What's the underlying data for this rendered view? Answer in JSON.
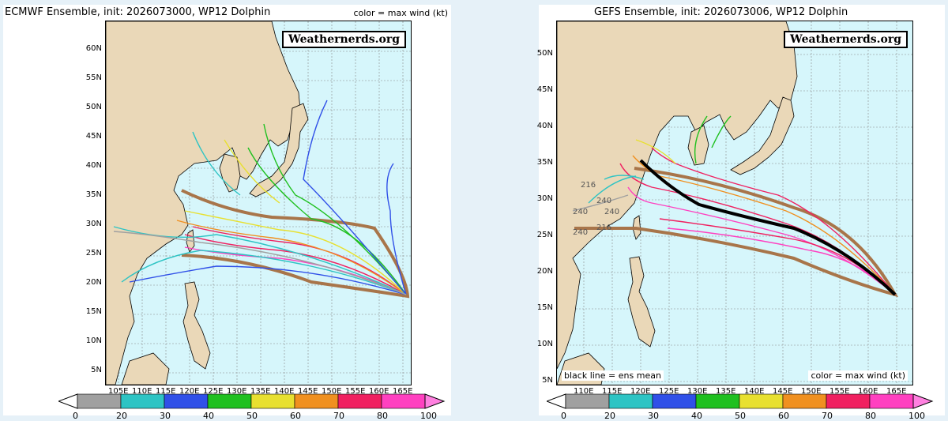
{
  "left_panel": {
    "title": "ECMWF Ensemble, init: 2026073000, WP12 Dolphin",
    "subtitle": "color = max wind (kt)",
    "brand": "Weathernerds.org",
    "lat_labels": [
      "60N",
      "55N",
      "50N",
      "45N",
      "40N",
      "35N",
      "30N",
      "25N",
      "20N",
      "15N",
      "10N",
      "5N"
    ],
    "lon_labels": [
      "105E",
      "110E",
      "115E",
      "120E",
      "125E",
      "130E",
      "135E",
      "140E",
      "145E",
      "150E",
      "155E",
      "160E",
      "165E"
    ]
  },
  "right_panel": {
    "title": "GEFS Ensemble, init: 2026073006, WP12 Dolphin",
    "brand": "Weathernerds.org",
    "note_left": "black line = ens mean",
    "note_right": "color = max wind (kt)",
    "lat_labels": [
      "50N",
      "45N",
      "40N",
      "35N",
      "30N",
      "25N",
      "20N",
      "15N",
      "10N",
      "5N"
    ],
    "lon_labels": [
      "110E",
      "115E",
      "120E",
      "125E",
      "130E",
      "135E",
      "140E",
      "145E",
      "150E",
      "155E",
      "160E",
      "165E"
    ],
    "hour_labels": [
      "240",
      "216",
      "240",
      "240",
      "216",
      "240"
    ]
  },
  "colorbar": {
    "labels": [
      "0",
      "20",
      "30",
      "40",
      "50",
      "60",
      "70",
      "80",
      "100"
    ],
    "colors": [
      "#a0a0a0",
      "#2ec4c4",
      "#3050e8",
      "#20c020",
      "#e8e030",
      "#f09020",
      "#f02060",
      "#ff40c0"
    ]
  },
  "colors": {
    "land": "#ead8b8",
    "ocean": "#d6f6fb",
    "cone": "#a8754a",
    "mean": "#000000"
  }
}
